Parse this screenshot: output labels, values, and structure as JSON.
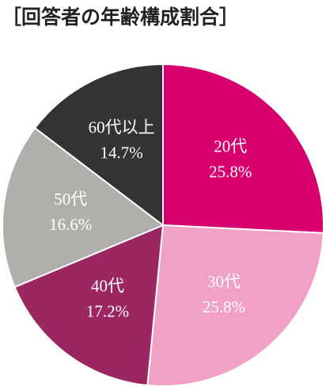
{
  "chart_data": {
    "type": "pie",
    "title": "［回答者の年齢構成割合］",
    "categories": [
      "20代",
      "30代",
      "40代",
      "50代",
      "60代以上"
    ],
    "values": [
      25.8,
      25.8,
      17.2,
      16.6,
      14.7
    ],
    "value_labels": [
      "25.8%",
      "25.8%",
      "17.2%",
      "16.6%",
      "14.7%"
    ],
    "colors": [
      "#d6006f",
      "#f1a1c6",
      "#9c2662",
      "#b1afab",
      "#343333"
    ]
  }
}
